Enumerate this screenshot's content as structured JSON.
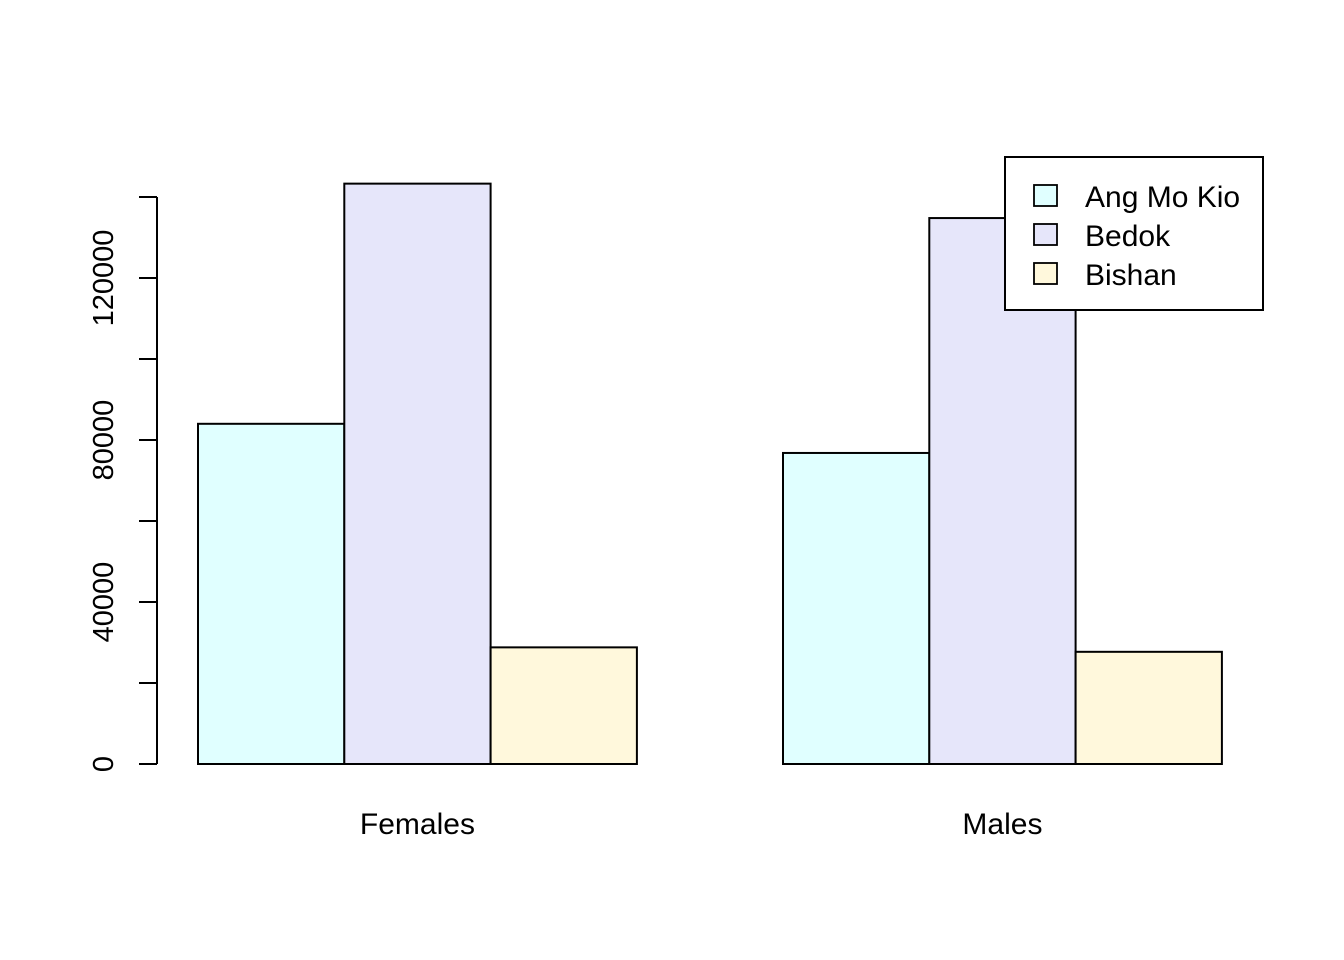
{
  "chart_data": {
    "type": "bar",
    "title": "",
    "xlabel": "",
    "ylabel": "",
    "categories": [
      "Females",
      "Males"
    ],
    "series": [
      {
        "name": "Ang Mo Kio",
        "values": [
          84000,
          76800
        ],
        "color": "#E0FFFF"
      },
      {
        "name": "Bedok",
        "values": [
          143300,
          134800
        ],
        "color": "#E6E6FA"
      },
      {
        "name": "Bishan",
        "values": [
          28800,
          27700
        ],
        "color": "#FFF8DC"
      }
    ],
    "ylim": [
      0,
      140000
    ],
    "yticks": [
      0,
      20000,
      40000,
      60000,
      80000,
      100000,
      120000,
      140000
    ],
    "ytick_labels": [
      "0",
      "",
      "40000",
      "",
      "80000",
      "",
      "120000",
      ""
    ],
    "grid": false,
    "legend_position": "top-right",
    "bar_border_color": "#000000"
  }
}
